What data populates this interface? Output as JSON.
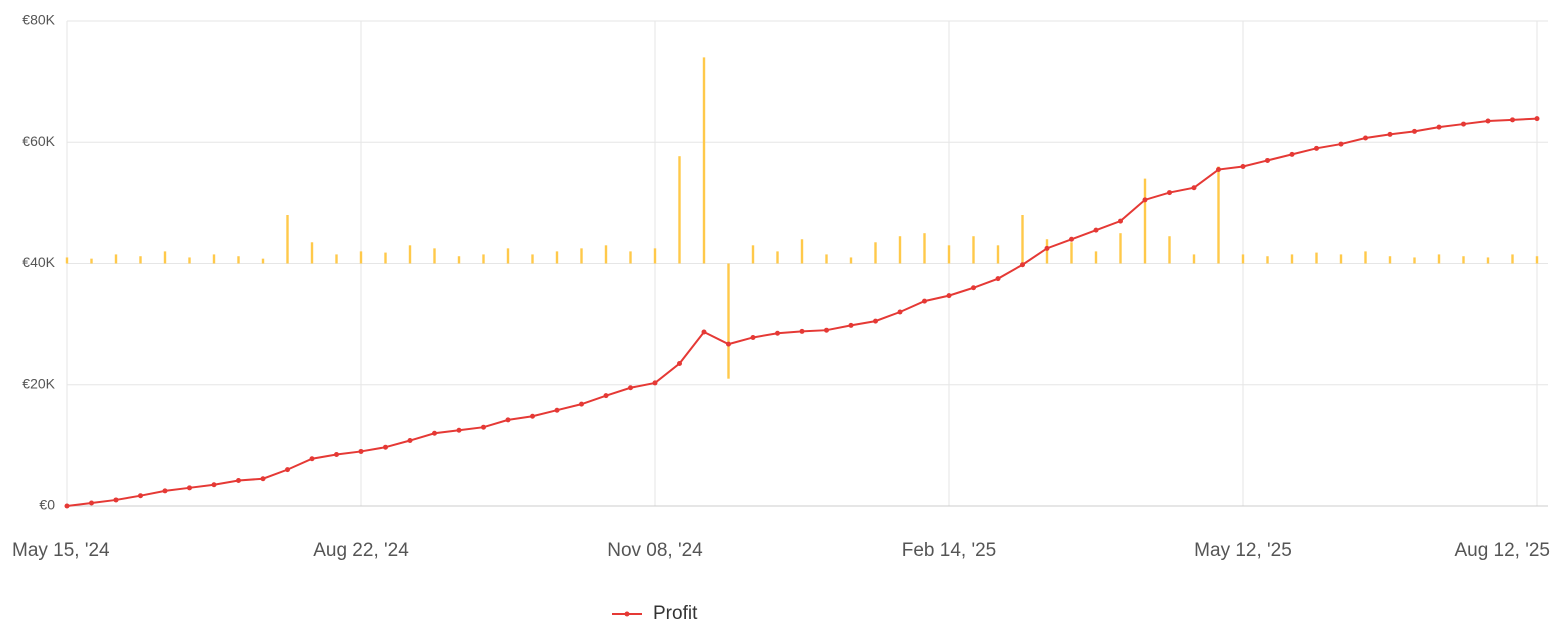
{
  "chart_data": {
    "type": "line",
    "categories": [
      "May 15, '24",
      null,
      null,
      null,
      null,
      null,
      null,
      null,
      null,
      null,
      null,
      null,
      "Aug 22, '24",
      null,
      null,
      null,
      null,
      null,
      null,
      null,
      null,
      null,
      null,
      null,
      "Nov 08, '24",
      null,
      null,
      null,
      null,
      null,
      null,
      null,
      null,
      null,
      null,
      null,
      "Feb 14, '25",
      null,
      null,
      null,
      null,
      null,
      null,
      null,
      null,
      null,
      null,
      null,
      "May 12, '25",
      null,
      null,
      null,
      null,
      null,
      null,
      null,
      null,
      null,
      null,
      null,
      "Aug 12, '25"
    ],
    "series": [
      {
        "name": "Profit",
        "color": "#e53935",
        "values": [
          0,
          500,
          1000,
          1700,
          2500,
          3000,
          3500,
          4200,
          4500,
          6000,
          7800,
          8500,
          9000,
          9700,
          10800,
          12000,
          12500,
          13000,
          14200,
          14800,
          15800,
          16800,
          18200,
          19500,
          20300,
          23500,
          28700,
          26700,
          27800,
          28500,
          28800,
          29000,
          29800,
          30500,
          32000,
          33800,
          34700,
          36000,
          37500,
          39800,
          42500,
          44000,
          45500,
          47000,
          50500,
          51700,
          52500,
          55500,
          56000,
          57000,
          58000,
          59000,
          59700,
          60700,
          61300,
          61800,
          62500,
          63000,
          63500,
          63700,
          63900
        ]
      },
      {
        "type": "bar",
        "axis": "y2",
        "color": "#ffc94a",
        "values": [
          1000,
          800,
          1500,
          1200,
          2000,
          1000,
          1500,
          1200,
          800,
          8000,
          3500,
          1500,
          2000,
          1800,
          3000,
          2500,
          1200,
          1500,
          2500,
          1500,
          2000,
          2500,
          3000,
          2000,
          2500,
          17700,
          34000,
          -19000,
          3000,
          2000,
          4000,
          1500,
          1000,
          3500,
          4500,
          5000,
          3000,
          4500,
          3000,
          8000,
          4000,
          3500,
          2000,
          5000,
          14000,
          4500,
          1500,
          16000,
          1500,
          1200,
          1500,
          1800,
          1500,
          2000,
          1200,
          1000,
          1500,
          1200,
          1000,
          1500,
          1200
        ]
      }
    ],
    "ylim": [
      0,
      80000
    ],
    "yticks": [
      {
        "value": 0,
        "label": "€0"
      },
      {
        "value": 20000,
        "label": "€20K"
      },
      {
        "value": 40000,
        "label": "€40K"
      },
      {
        "value": 60000,
        "label": "€60K"
      },
      {
        "value": 80000,
        "label": "€80K"
      }
    ],
    "y2lim": [
      -40000,
      40000
    ],
    "grid": true,
    "legend": "bottom"
  }
}
